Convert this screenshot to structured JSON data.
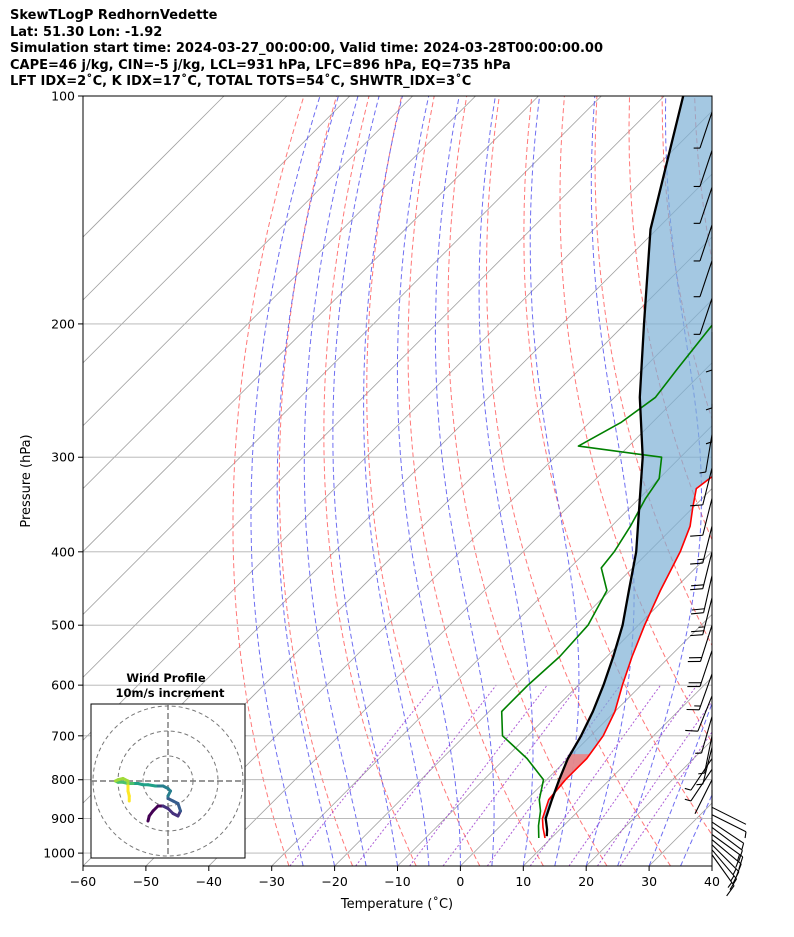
{
  "header": {
    "line1": "SkewTLogP RedhornVedette",
    "line2": "Lat: 51.30   Lon: -1.92",
    "line3": "Simulation start time: 2024-03-27_00:00:00, Valid time: 2024-03-28T00:00:00.00",
    "line4": "CAPE=46 j/kg, CIN=-5 j/kg, LCL=931 hPa, LFC=896 hPa, EQ=735 hPa",
    "line5": "LFT IDX=2˚C, K IDX=17˚C, TOTAL TOTS=54˚C, SHWTR_IDX=3˚C"
  },
  "colors": {
    "temperature": "#ff0000",
    "dewpoint": "#008000",
    "parcel": "#000000",
    "cape_fill": "#7eb0d5",
    "cin_fill": "#f08080",
    "dry_adiabat": "#ff6060",
    "moist_adiabat": "#5555ee",
    "mixing_ratio": "#9933cc",
    "isotherm": "#a0a0a0"
  },
  "chart_data": {
    "type": "line",
    "xlabel": "Temperature (˚C)",
    "ylabel": "Pressure (hPa)",
    "xlim": [
      -60,
      40
    ],
    "ylim": [
      1040,
      100
    ],
    "y_log_scale": true,
    "skew": true,
    "x_ticks": [
      "−60",
      "−50",
      "−40",
      "−30",
      "−20",
      "−10",
      "0",
      "10",
      "20",
      "30",
      "40"
    ],
    "y_ticks": [
      "1000",
      "900",
      "800",
      "700",
      "600",
      "500",
      "400",
      "300",
      "200",
      "100"
    ],
    "y_tick_values": [
      1000,
      900,
      800,
      700,
      600,
      500,
      400,
      300,
      200,
      100
    ],
    "grid": true,
    "series": [
      {
        "key": "temperature",
        "pressure": [
          955,
          925,
          900,
          850,
          800,
          750,
          700,
          650,
          600,
          550,
          500,
          450,
          400,
          370,
          350,
          330,
          320,
          300,
          275,
          260,
          240,
          210,
          190,
          175,
          160,
          145,
          130,
          115,
          105,
          100
        ],
        "values": [
          9,
          7,
          5.5,
          3.5,
          3,
          3,
          2,
          0,
          -3,
          -6,
          -9,
          -12,
          -15,
          -17.5,
          -20,
          -22.5,
          -22,
          -20.5,
          -20,
          -21,
          -22.5,
          -24.5,
          -25,
          -26,
          -27,
          -28.5,
          -31.5,
          -34,
          -35,
          -35
        ]
      },
      {
        "key": "dewpoint",
        "pressure": [
          955,
          920,
          880,
          850,
          800,
          750,
          700,
          650,
          600,
          550,
          500,
          450,
          420,
          400,
          370,
          340,
          320,
          300,
          290,
          270,
          250,
          230,
          200,
          180,
          150,
          130,
          100
        ],
        "values": [
          8,
          6,
          4,
          2,
          -0.5,
          -6.5,
          -14,
          -18,
          -18,
          -17.5,
          -18,
          -20.5,
          -25,
          -25.5,
          -27,
          -29,
          -30,
          -33,
          -48,
          -45,
          -43.5,
          -44.5,
          -46,
          -46,
          -45.5,
          -45.5,
          -46
        ]
      },
      {
        "key": "parcel",
        "pressure": [
          950,
          931,
          900,
          850,
          800,
          750,
          700,
          650,
          600,
          550,
          500,
          450,
          400,
          350,
          300,
          250,
          200,
          150,
          100
        ],
        "values": [
          9,
          8,
          6,
          4,
          2,
          0,
          -1.5,
          -3.5,
          -6,
          -9,
          -12.5,
          -17,
          -22,
          -28.5,
          -36,
          -46,
          -57,
          -71,
          -87
        ]
      }
    ],
    "winds": {
      "pressure": [
        1005,
        990,
        975,
        960,
        945,
        925,
        910,
        890,
        870,
        850,
        825,
        800,
        775,
        750,
        725,
        700,
        660,
        620,
        580,
        540,
        500,
        460,
        430,
        400,
        370,
        340,
        310,
        280,
        255,
        230,
        205,
        185,
        165,
        148,
        132,
        118,
        105
      ],
      "u_ms": [
        -5,
        -5.5,
        -6,
        -6,
        -5.5,
        -4,
        -3,
        -2,
        -1,
        0,
        0,
        0.5,
        1,
        1,
        0.5,
        0.5,
        1,
        2,
        2.5,
        3,
        3.5,
        3,
        2.5,
        2.5,
        2,
        1.5,
        1,
        0.5,
        0,
        0,
        0,
        0.5,
        0.5,
        0.5,
        0.5,
        0.5,
        0.5
      ],
      "v_ms": [
        7,
        6.5,
        6,
        5,
        4,
        3,
        2,
        1,
        0.5,
        0,
        0.5,
        1,
        1.5,
        1.5,
        2,
        2.5,
        3.5,
        5,
        7,
        9,
        11,
        12,
        11,
        10,
        8,
        6,
        4,
        3,
        3,
        2,
        2,
        1.5,
        1.5,
        1.5,
        1.5,
        1.5,
        1.5
      ]
    },
    "hodograph": {
      "title": "Wind Profile",
      "subtitle": "10m/s increment",
      "u": [
        -8,
        -7.5,
        -6,
        -4,
        -2,
        0,
        2,
        4,
        5,
        4,
        2,
        0,
        0,
        1,
        0,
        -2,
        -5,
        -8,
        -10,
        -12,
        -14,
        -16,
        -18,
        -20,
        -21,
        -20,
        -18,
        -16,
        -16,
        -16,
        -15.5,
        -15.5
      ],
      "v": [
        -16,
        -14,
        -12,
        -10,
        -10,
        -11,
        -13,
        -14,
        -12,
        -9,
        -8,
        -7,
        -6,
        -4,
        -3,
        -2,
        -2,
        -1.5,
        -1.5,
        -1,
        -1,
        -1,
        -0.5,
        -0.5,
        0,
        0.5,
        1,
        0,
        -2,
        -4,
        -6,
        -8
      ]
    }
  }
}
